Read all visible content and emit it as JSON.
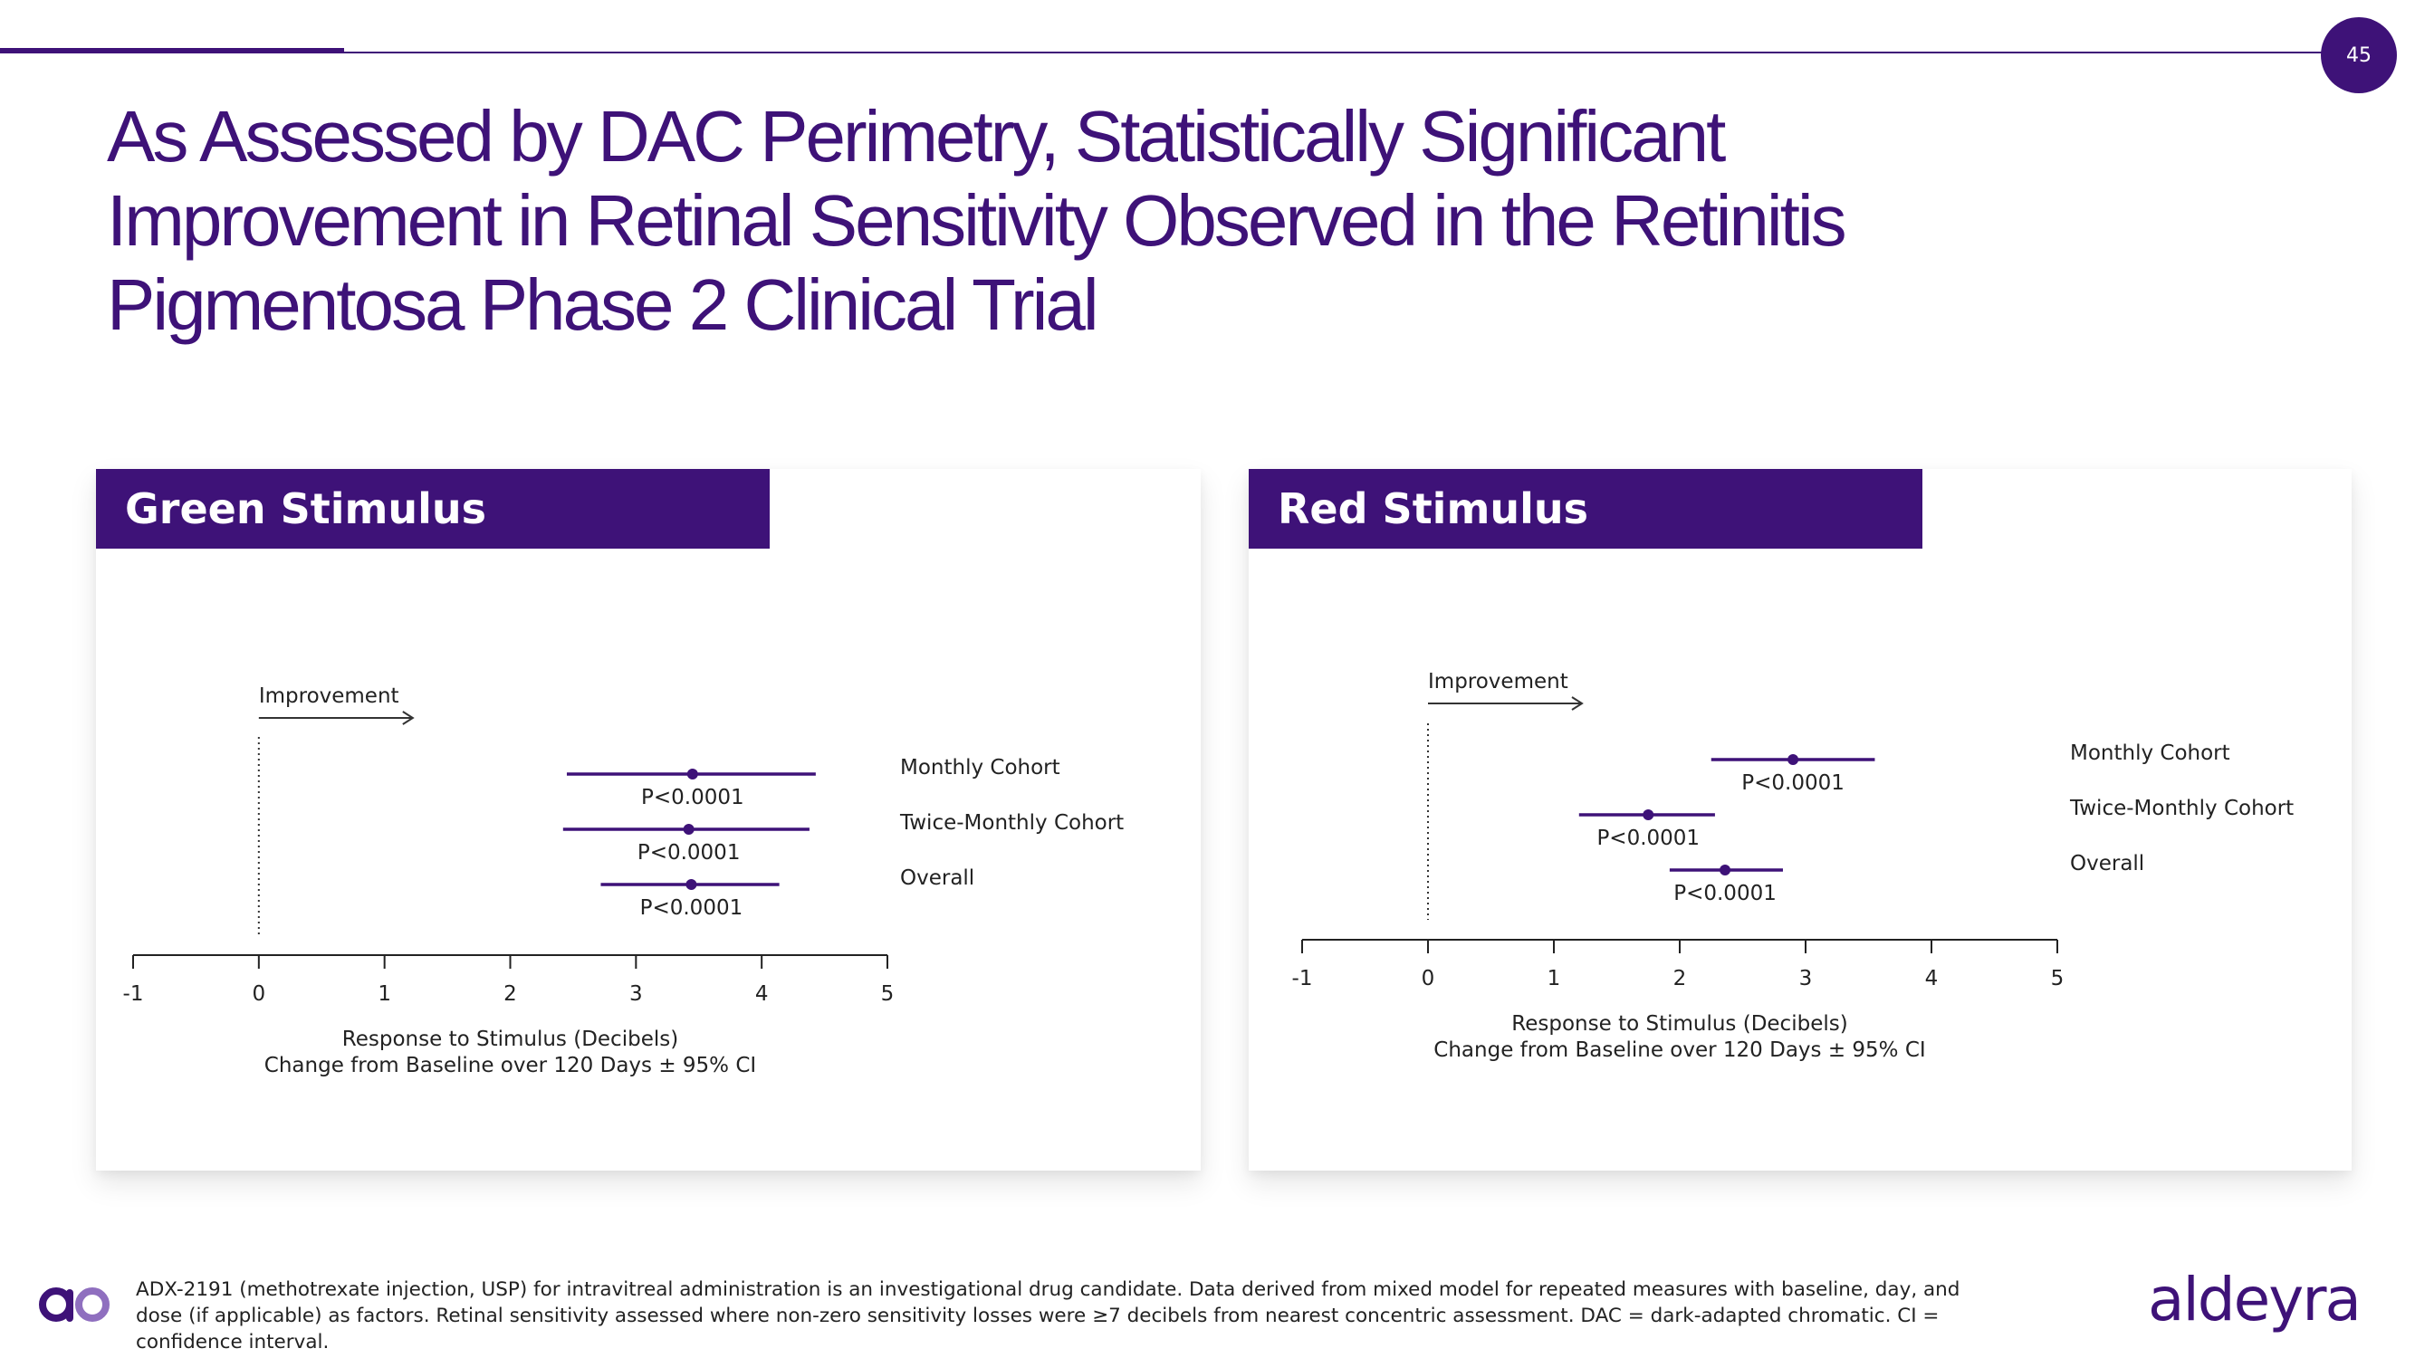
{
  "slide": {
    "page_number": "45",
    "title_lines": [
      "As Assessed by DAC Perimetry, Statistically Significant",
      "Improvement in Retinal Sensitivity Observed in the Retinitis",
      "Pigmentosa Phase 2 Clinical Trial"
    ],
    "footnote": "ADX-2191 (methotrexate injection, USP) for intravitreal administration is an investigational drug candidate. Data derived from mixed model for repeated measures with baseline, day, and dose (if applicable) as factors. Retinal sensitivity assessed where non-zero sensitivity losses were ≥7 decibels from nearest concentric assessment. DAC = dark-adapted chromatic. CI = confidence interval.",
    "brand": "aldeyra"
  },
  "colors": {
    "accent": "#3e1278",
    "text": "#222222"
  },
  "icons": [
    "brand-mark-icon",
    "arrow-right-icon"
  ],
  "chart_data": [
    {
      "type": "forest",
      "title": "Green Stimulus",
      "annotation": "Improvement",
      "xlabel": [
        "Response to Stimulus (Decibels)",
        "Change from Baseline over 120 Days ± 95% CI"
      ],
      "xlim": [
        -1,
        5
      ],
      "xticks": [
        -1,
        0,
        1,
        2,
        3,
        4,
        5
      ],
      "reference_line": 0,
      "rows": [
        {
          "label": "Monthly Cohort",
          "estimate": 3.45,
          "ci_low": 2.45,
          "ci_high": 4.43,
          "p": "P<0.0001"
        },
        {
          "label": "Twice-Monthly Cohort",
          "estimate": 3.42,
          "ci_low": 2.42,
          "ci_high": 4.38,
          "p": "P<0.0001"
        },
        {
          "label": "Overall",
          "estimate": 3.44,
          "ci_low": 2.72,
          "ci_high": 4.14,
          "p": "P<0.0001"
        }
      ]
    },
    {
      "type": "forest",
      "title": "Red Stimulus",
      "annotation": "Improvement",
      "xlabel": [
        "Response to Stimulus (Decibels)",
        "Change from Baseline over 120 Days ± 95% CI"
      ],
      "xlim": [
        -1,
        5
      ],
      "xticks": [
        -1,
        0,
        1,
        2,
        3,
        4,
        5
      ],
      "reference_line": 0,
      "rows": [
        {
          "label": "Monthly Cohort",
          "estimate": 2.9,
          "ci_low": 2.25,
          "ci_high": 3.55,
          "p": "P<0.0001"
        },
        {
          "label": "Twice-Monthly Cohort",
          "estimate": 1.75,
          "ci_low": 1.2,
          "ci_high": 2.28,
          "p": "P<0.0001"
        },
        {
          "label": "Overall",
          "estimate": 2.36,
          "ci_low": 1.92,
          "ci_high": 2.82,
          "p": "P<0.0001"
        }
      ]
    }
  ]
}
